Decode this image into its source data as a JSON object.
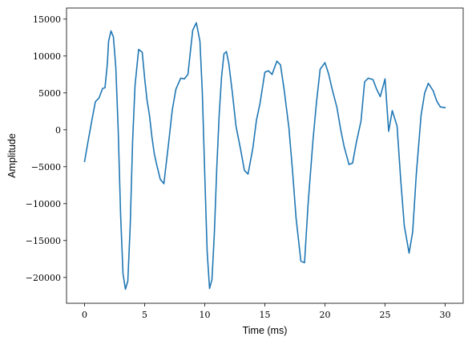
{
  "chart_data": {
    "type": "line",
    "title": "",
    "xlabel": "Time (ms)",
    "ylabel": "Amplitude",
    "xlim": [
      -1.5,
      31.5
    ],
    "ylim": [
      -23500,
      16500
    ],
    "xticks": [
      0,
      5,
      10,
      15,
      20,
      25,
      30
    ],
    "xtick_labels": [
      "0",
      "5",
      "10",
      "15",
      "20",
      "25",
      "30"
    ],
    "yticks": [
      15000,
      10000,
      5000,
      0,
      -5000,
      -10000,
      -15000,
      -20000
    ],
    "ytick_labels": [
      "15000",
      "10000",
      "5000",
      "0",
      "−5000",
      "−10000",
      "−15000",
      "−20000"
    ],
    "grid": false,
    "legend": "none",
    "series": [
      {
        "color": "#1f77b4",
        "x": [
          0.0,
          0.3,
          0.6,
          0.9,
          1.2,
          1.5,
          1.7,
          1.9,
          2.0,
          2.2,
          2.4,
          2.6,
          2.8,
          3.0,
          3.2,
          3.4,
          3.6,
          3.8,
          4.0,
          4.2,
          4.5,
          4.8,
          5.0,
          5.2,
          5.4,
          5.6,
          5.8,
          6.0,
          6.3,
          6.6,
          7.0,
          7.3,
          7.6,
          8.0,
          8.3,
          8.6,
          9.0,
          9.3,
          9.6,
          9.8,
          10.0,
          10.2,
          10.4,
          10.6,
          10.8,
          11.0,
          11.2,
          11.4,
          11.6,
          11.8,
          12.0,
          12.3,
          12.6,
          13.0,
          13.3,
          13.6,
          14.0,
          14.3,
          14.6,
          15.0,
          15.3,
          15.6,
          16.0,
          16.3,
          16.6,
          17.0,
          17.3,
          17.6,
          18.0,
          18.3,
          18.6,
          19.0,
          19.3,
          19.6,
          20.0,
          20.3,
          20.6,
          21.0,
          21.3,
          21.6,
          22.0,
          22.3,
          22.6,
          23.0,
          23.3,
          23.6,
          24.0,
          24.3,
          24.6,
          25.0,
          25.3,
          25.6,
          26.0,
          26.3,
          26.6,
          27.0,
          27.3,
          27.6,
          28.0,
          28.3,
          28.6,
          29.0,
          29.3,
          29.6,
          30.0
        ],
        "y": [
          -4300,
          -1500,
          1200,
          3800,
          4300,
          5600,
          5700,
          9000,
          12000,
          13400,
          12600,
          8500,
          0,
          -11500,
          -19500,
          -21600,
          -20500,
          -13000,
          -1500,
          6000,
          10900,
          10500,
          7000,
          4000,
          2000,
          -900,
          -3200,
          -4700,
          -6700,
          -7300,
          -1700,
          2700,
          5500,
          7000,
          6900,
          7500,
          13500,
          14500,
          12000,
          5000,
          -6000,
          -16500,
          -21500,
          -20300,
          -14000,
          -5200,
          2000,
          7200,
          10300,
          10600,
          9000,
          5000,
          500,
          -2800,
          -5500,
          -6000,
          -2500,
          1300,
          3600,
          7800,
          8000,
          7500,
          9300,
          8800,
          5500,
          300,
          -5500,
          -12000,
          -17800,
          -18000,
          -10000,
          -1500,
          3800,
          8200,
          9100,
          7600,
          5500,
          3000,
          100,
          -2300,
          -4700,
          -4500,
          -1800,
          1200,
          6500,
          7000,
          6800,
          5500,
          4500,
          6900,
          -200,
          2600,
          500,
          -6700,
          -13000,
          -16700,
          -13800,
          -6000,
          2000,
          5000,
          6300,
          5300,
          3900,
          3100,
          3000
        ]
      }
    ]
  }
}
